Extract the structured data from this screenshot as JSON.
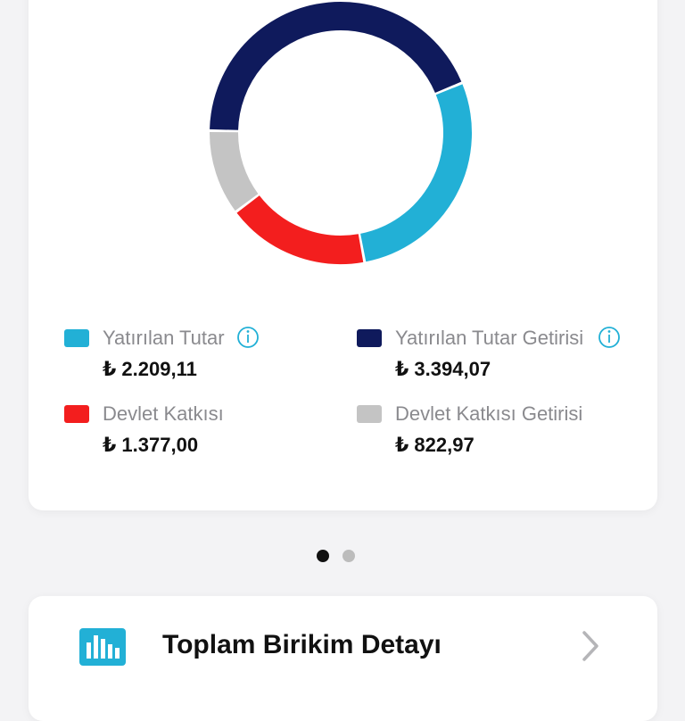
{
  "chart_data": {
    "type": "donut",
    "categories": [
      "Yatırılan Tutar",
      "Yatırılan Tutar Getirisi",
      "Devlet Katkısı",
      "Devlet Katkısı Getirisi"
    ],
    "values": [
      2209.11,
      3394.07,
      1377.0,
      822.97
    ],
    "value_labels": [
      "₺ 2.209,11",
      "₺ 3.394,07",
      "₺ 1.377,00",
      "₺ 822,97"
    ],
    "colors": [
      "#22b0d6",
      "#0f1a5c",
      "#f31e1e",
      "#c4c4c4"
    ]
  },
  "detail_card": {
    "title": "Toplam Birikim Detayı"
  }
}
